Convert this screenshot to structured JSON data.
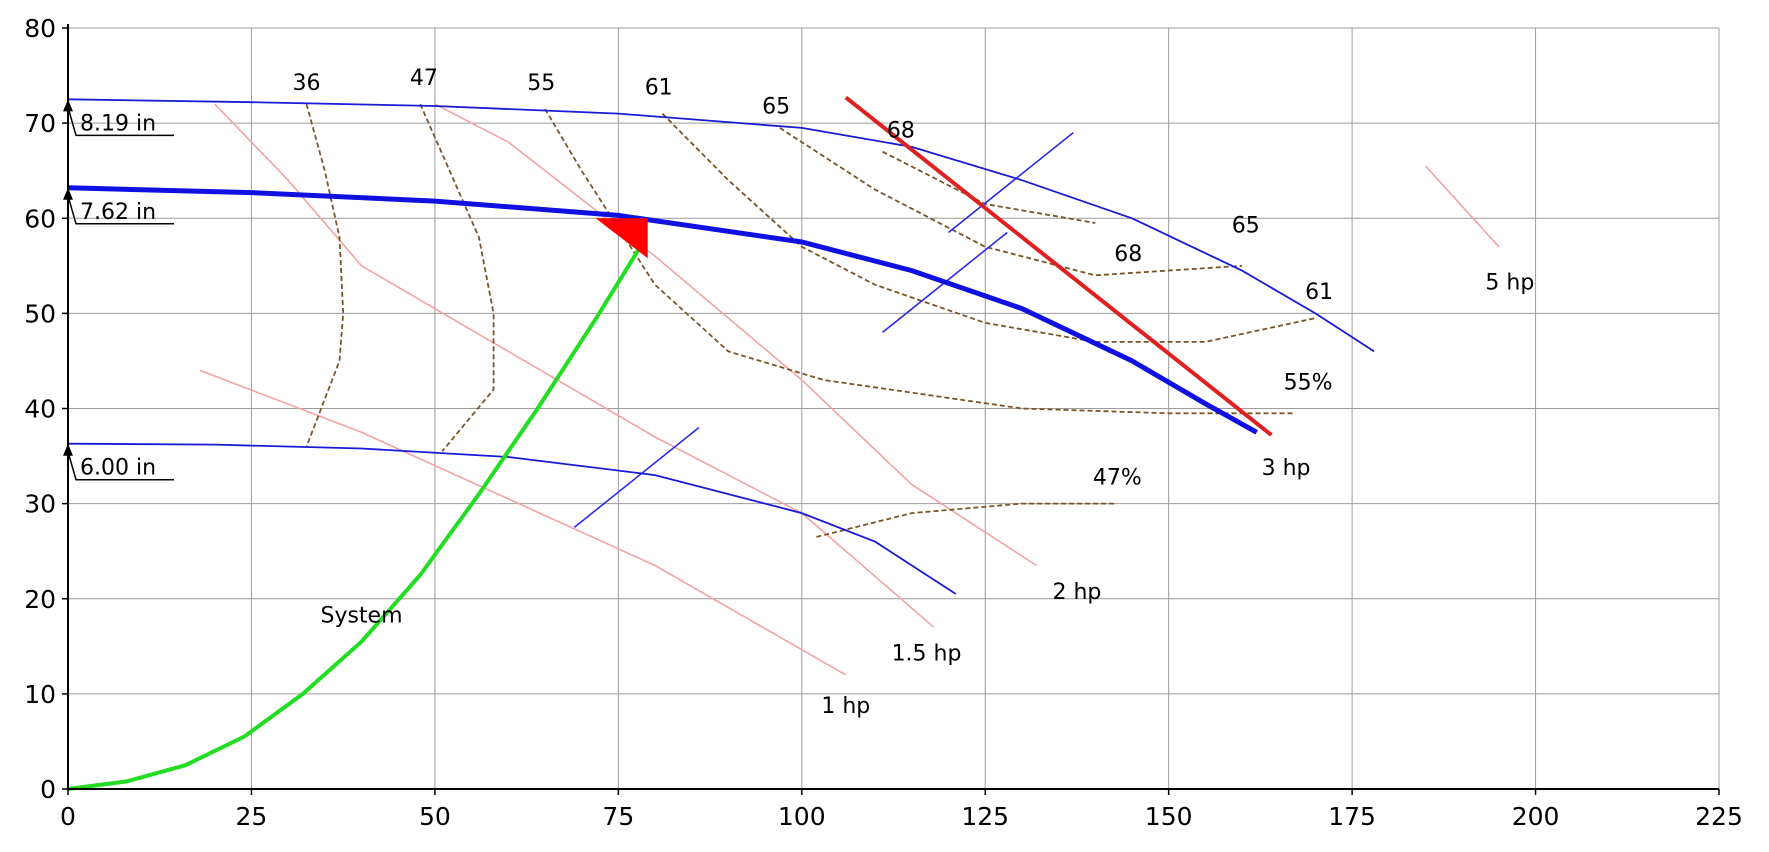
{
  "chart_data": {
    "type": "line",
    "title": "",
    "xlabel": "",
    "ylabel": "",
    "xlim": [
      0,
      225
    ],
    "ylim": [
      0,
      80
    ],
    "x_ticks": [
      0,
      25,
      50,
      75,
      100,
      125,
      150,
      175,
      200,
      225
    ],
    "y_ticks": [
      0,
      10,
      20,
      30,
      40,
      50,
      60,
      70,
      80
    ],
    "grid": true,
    "colors": {
      "impeller_curve": "#1a1ad6",
      "selected_curve": "#1010e0",
      "system_curve": "#22dd22",
      "power_line": "#f4a3a3",
      "efficiency_line": "#7a5426",
      "limit_line": "#e02020",
      "operating_point": "#ff0000"
    },
    "impeller_curves": [
      {
        "label": "8.19 in",
        "points": [
          [
            0,
            72.5
          ],
          [
            25,
            72.2
          ],
          [
            50,
            71.8
          ],
          [
            75,
            71.0
          ],
          [
            100,
            69.5
          ],
          [
            115,
            67.5
          ],
          [
            130,
            64.0
          ],
          [
            145,
            60.0
          ],
          [
            160,
            54.5
          ],
          [
            170,
            50.0
          ],
          [
            178,
            46.0
          ]
        ]
      },
      {
        "label": "7.62 in",
        "selected": true,
        "points": [
          [
            0,
            63.2
          ],
          [
            25,
            62.7
          ],
          [
            50,
            61.8
          ],
          [
            75,
            60.3
          ],
          [
            100,
            57.5
          ],
          [
            115,
            54.5
          ],
          [
            130,
            50.5
          ],
          [
            145,
            45.0
          ],
          [
            155,
            40.5
          ],
          [
            162,
            37.5
          ]
        ]
      },
      {
        "label": "6.00 in",
        "points": [
          [
            0,
            36.3
          ],
          [
            20,
            36.2
          ],
          [
            40,
            35.8
          ],
          [
            60,
            34.9
          ],
          [
            80,
            33.0
          ],
          [
            100,
            29.0
          ],
          [
            110,
            26.0
          ],
          [
            121,
            20.5
          ]
        ]
      }
    ],
    "system_curve": {
      "label": "System",
      "points": [
        [
          0,
          0
        ],
        [
          8,
          0.8
        ],
        [
          16,
          2.5
        ],
        [
          24,
          5.5
        ],
        [
          32,
          10
        ],
        [
          40,
          15.5
        ],
        [
          48,
          22.5
        ],
        [
          56,
          31
        ],
        [
          64,
          40
        ],
        [
          72,
          49.5
        ],
        [
          78,
          57
        ]
      ]
    },
    "operating_point": {
      "x": 79,
      "y": 60
    },
    "limit_line": {
      "points": [
        [
          106,
          72.7
        ],
        [
          164,
          37.2
        ]
      ]
    },
    "power_lines": [
      {
        "label": "1 hp",
        "points": [
          [
            18,
            44
          ],
          [
            40,
            37.5
          ],
          [
            60,
            30.5
          ],
          [
            80,
            23.5
          ],
          [
            106,
            12
          ]
        ]
      },
      {
        "label": "1.5 hp",
        "points": [
          [
            20,
            72
          ],
          [
            30,
            64
          ],
          [
            40,
            55
          ],
          [
            60,
            46
          ],
          [
            80,
            37
          ],
          [
            100,
            29
          ],
          [
            118,
            17
          ]
        ]
      },
      {
        "label": "2 hp",
        "points": [
          [
            50,
            72
          ],
          [
            60,
            68
          ],
          [
            80,
            56
          ],
          [
            100,
            43
          ],
          [
            115,
            32
          ],
          [
            132,
            23.5
          ]
        ]
      },
      {
        "label": "5 hp",
        "points": [
          [
            185,
            65.5
          ],
          [
            195,
            57
          ]
        ]
      }
    ],
    "efficiency_lines": [
      {
        "label": "36",
        "points": [
          [
            32.5,
            72
          ],
          [
            35,
            65
          ],
          [
            37,
            58
          ],
          [
            37.5,
            50
          ],
          [
            37,
            45
          ],
          [
            32.5,
            36
          ]
        ]
      },
      {
        "label": "47",
        "points": [
          [
            48,
            72
          ],
          [
            52,
            65
          ],
          [
            56,
            58
          ],
          [
            58,
            50
          ],
          [
            58,
            42
          ],
          [
            51,
            35.5
          ]
        ]
      },
      {
        "label": "55",
        "points": [
          [
            65,
            71.5
          ],
          [
            70,
            65
          ],
          [
            75,
            59
          ],
          [
            80,
            53
          ],
          [
            90,
            46
          ],
          [
            103,
            43
          ],
          [
            130,
            40
          ],
          [
            150,
            39.5
          ],
          [
            167,
            39.5
          ]
        ]
      },
      {
        "label": "61",
        "points": [
          [
            81,
            71
          ],
          [
            90,
            64
          ],
          [
            100,
            57
          ],
          [
            110,
            53
          ],
          [
            125,
            49
          ],
          [
            140,
            47
          ],
          [
            155,
            47
          ],
          [
            170,
            49.5
          ]
        ]
      },
      {
        "label": "65",
        "points": [
          [
            97,
            69.5
          ],
          [
            110,
            63
          ],
          [
            125,
            57
          ],
          [
            140,
            54
          ],
          [
            160,
            55
          ]
        ]
      },
      {
        "label": "68",
        "points": [
          [
            111,
            67
          ],
          [
            125,
            61.5
          ],
          [
            140,
            59.5
          ]
        ]
      },
      {
        "label": "47%",
        "points": [
          [
            102,
            26.5
          ],
          [
            115,
            29
          ],
          [
            130,
            30
          ],
          [
            143,
            30
          ]
        ]
      }
    ],
    "npsh_marks": [
      {
        "points": [
          [
            69,
            27.5
          ],
          [
            86,
            38
          ]
        ]
      },
      {
        "points": [
          [
            111,
            48
          ],
          [
            128,
            58.5
          ]
        ]
      },
      {
        "points": [
          [
            120,
            58.5
          ],
          [
            137,
            69
          ]
        ]
      }
    ],
    "text_annotations": [
      {
        "text": "36",
        "x": 32.5,
        "y": 73.5
      },
      {
        "text": "47",
        "x": 48.5,
        "y": 74
      },
      {
        "text": "55",
        "x": 64.5,
        "y": 73.5
      },
      {
        "text": "61",
        "x": 80.5,
        "y": 73
      },
      {
        "text": "65",
        "x": 96.5,
        "y": 71
      },
      {
        "text": "68",
        "x": 113.5,
        "y": 68.5
      },
      {
        "text": "68",
        "x": 144.5,
        "y": 55.5
      },
      {
        "text": "65",
        "x": 160.5,
        "y": 58.5
      },
      {
        "text": "61",
        "x": 170.5,
        "y": 51.5
      },
      {
        "text": "55%",
        "x": 169,
        "y": 42
      },
      {
        "text": "47%",
        "x": 143,
        "y": 32
      },
      {
        "text": "3 hp",
        "x": 166,
        "y": 33
      },
      {
        "text": "5 hp",
        "x": 196.5,
        "y": 52.5
      },
      {
        "text": "2 hp",
        "x": 137.5,
        "y": 20
      },
      {
        "text": "1.5 hp",
        "x": 117,
        "y": 13.5
      },
      {
        "text": "1 hp",
        "x": 106,
        "y": 8
      },
      {
        "text": "System",
        "x": 40,
        "y": 17.5
      }
    ]
  }
}
